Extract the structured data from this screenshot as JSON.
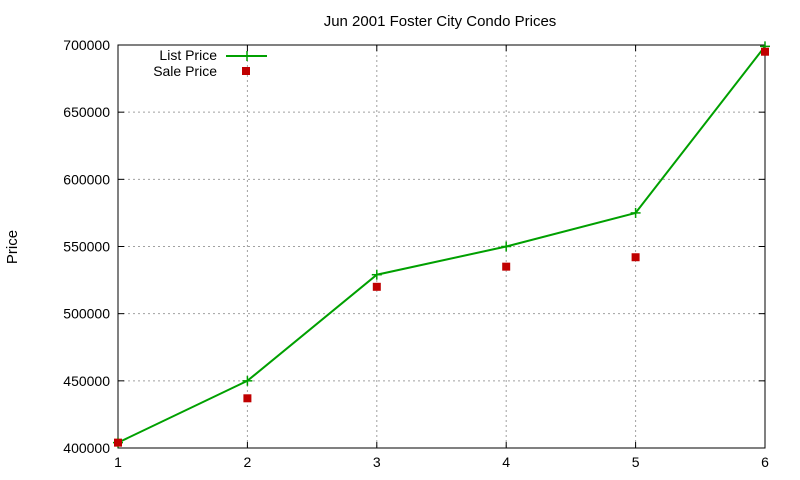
{
  "chart_data": {
    "type": "line",
    "title": "Jun 2001 Foster City Condo Prices",
    "xlabel": "",
    "ylabel": "Price",
    "x": [
      1,
      2,
      3,
      4,
      5,
      6
    ],
    "xlim": [
      1,
      6
    ],
    "ylim": [
      400000,
      700000
    ],
    "xticks": [
      "1",
      "2",
      "3",
      "4",
      "5",
      "6"
    ],
    "yticks": [
      "400000",
      "450000",
      "500000",
      "550000",
      "600000",
      "650000",
      "700000"
    ],
    "grid": true,
    "legend_position": "top-left",
    "series": [
      {
        "name": "List Price",
        "style": "linespoints",
        "marker": "plus",
        "color": "#00a000",
        "values": [
          404000,
          450000,
          529000,
          550000,
          575000,
          699000
        ]
      },
      {
        "name": "Sale Price",
        "style": "points",
        "marker": "square",
        "color": "#c00000",
        "values": [
          404000,
          437000,
          520000,
          535000,
          542000,
          695000
        ]
      }
    ]
  }
}
